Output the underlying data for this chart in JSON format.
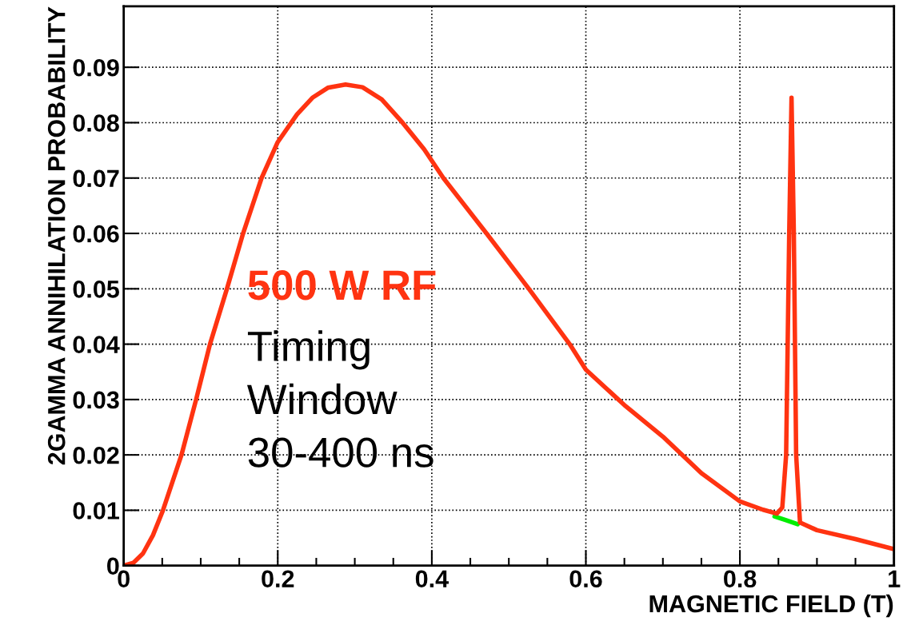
{
  "chart_data": {
    "type": "line",
    "xlabel": "MAGNETIC FIELD (T)",
    "ylabel": "2GAMMA ANNIHILATION PROBABILITY",
    "annotations": [
      "Timing\nWindow\n30-400 ns"
    ],
    "xlim": [
      0,
      1
    ],
    "ylim": [
      0,
      0.101
    ],
    "xticks": [
      0,
      {
        "value": 0.05,
        "label": null
      },
      {
        "value": 0.1,
        "label": null
      },
      {
        "value": 0.15,
        "label": null
      },
      0.2,
      {
        "value": 0.25,
        "label": null
      },
      {
        "value": 0.3,
        "label": null
      },
      {
        "value": 0.35,
        "label": null
      },
      0.4,
      {
        "value": 0.45,
        "label": null
      },
      {
        "value": 0.5,
        "label": null
      },
      {
        "value": 0.55,
        "label": null
      },
      0.6,
      {
        "value": 0.65,
        "label": null
      },
      {
        "value": 0.7,
        "label": null
      },
      {
        "value": 0.75,
        "label": null
      },
      0.8,
      {
        "value": 0.85,
        "label": null
      },
      {
        "value": 0.9,
        "label": null
      },
      {
        "value": 0.95,
        "label": null
      },
      1
    ],
    "yticks": [
      0,
      0.01,
      0.02,
      0.03,
      0.04,
      0.05,
      0.06,
      0.07,
      0.08,
      0.09
    ],
    "grid": true,
    "line_style": "solid",
    "marker": "none",
    "series": [
      {
        "color": "#00ee00",
        "x": [
          0.845,
          0.86,
          0.875
        ],
        "values": [
          0.0089,
          0.0082,
          0.0075
        ]
      },
      {
        "name": "500 W RF",
        "color": "#ff3311",
        "x": [
          0,
          0.0125,
          0.025,
          0.038,
          0.051,
          0.075,
          0.094,
          0.112,
          0.134,
          0.155,
          0.179,
          0.2,
          0.225,
          0.245,
          0.265,
          0.288,
          0.31,
          0.335,
          0.362,
          0.39,
          0.415,
          0.471,
          0.526,
          0.579,
          0.6,
          0.65,
          0.7,
          0.75,
          0.8,
          0.83,
          0.848,
          0.855,
          0.86,
          0.864,
          0.867,
          0.87,
          0.873,
          0.878,
          0.9,
          0.95,
          1
        ],
        "values": [
          0,
          0.0005,
          0.0022,
          0.0055,
          0.01,
          0.02,
          0.03,
          0.04,
          0.05,
          0.06,
          0.07,
          0.0765,
          0.0815,
          0.0845,
          0.0863,
          0.0869,
          0.0864,
          0.0842,
          0.08,
          0.0752,
          0.07,
          0.06,
          0.05,
          0.04,
          0.0354,
          0.029,
          0.0233,
          0.0167,
          0.0116,
          0.0101,
          0.0094,
          0.0105,
          0.02,
          0.06,
          0.0845,
          0.06,
          0.02,
          0.0078,
          0.0064,
          0.0048,
          0.003
        ]
      }
    ]
  }
}
